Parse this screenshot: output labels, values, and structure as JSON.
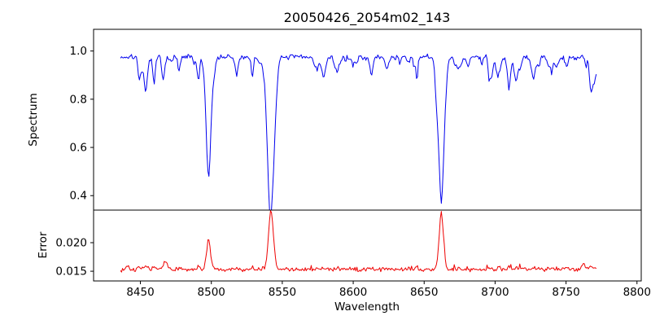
{
  "chart_data": {
    "type": "line",
    "title": "20050426_2054m02_143",
    "xlabel": "Wavelength",
    "xlim": [
      8417,
      8803
    ],
    "x_ticks": {
      "values": [
        8450,
        8500,
        8550,
        8600,
        8650,
        8700,
        8750,
        8800
      ],
      "labels": [
        "8450",
        "8500",
        "8550",
        "8600",
        "8650",
        "8700",
        "8750",
        "8800"
      ]
    },
    "background": "#ffffff",
    "grid": false,
    "legend": "none",
    "panels": [
      {
        "name": "spectrum",
        "ylabel": "Spectrum",
        "color": "#0000ee",
        "ylim": [
          0.34,
          1.09
        ],
        "y_ticks": {
          "values": [
            0.4,
            0.6,
            0.8,
            1.0
          ],
          "labels": [
            "0.4",
            "0.6",
            "0.8",
            "1.0"
          ]
        },
        "x_range": [
          8436,
          8772
        ],
        "continuum": 0.975,
        "noise_amplitude": 0.016,
        "absorption_lines": [
          {
            "center": 8498.0,
            "depth": 0.42,
            "sigma": 1.8,
            "min_flux": 0.555
          },
          {
            "center": 8542.1,
            "depth": 0.6,
            "sigma": 2.4,
            "min_flux": 0.375
          },
          {
            "center": 8662.1,
            "depth": 0.56,
            "sigma": 2.1,
            "min_flux": 0.415
          }
        ],
        "minor_line_count": 60
      },
      {
        "name": "error",
        "ylabel": "Error",
        "color": "#ee0000",
        "ylim": [
          0.0133,
          0.0257
        ],
        "y_ticks": {
          "values": [
            0.015,
            0.02
          ],
          "labels": [
            "0.015",
            "0.020"
          ]
        },
        "x_range": [
          8436,
          8772
        ],
        "baseline": 0.0153,
        "noise_amplitude": 0.0005,
        "peaks": [
          {
            "center": 8498.0,
            "height": 0.005,
            "sigma": 1.4
          },
          {
            "center": 8542.1,
            "height": 0.01,
            "sigma": 1.7
          },
          {
            "center": 8662.1,
            "height": 0.0098,
            "sigma": 1.5
          },
          {
            "center": 8468.0,
            "height": 0.0014,
            "sigma": 1.2
          },
          {
            "center": 8441.0,
            "height": 0.0009,
            "sigma": 1.0
          },
          {
            "center": 8762.0,
            "height": 0.001,
            "sigma": 1.2
          }
        ]
      }
    ]
  }
}
